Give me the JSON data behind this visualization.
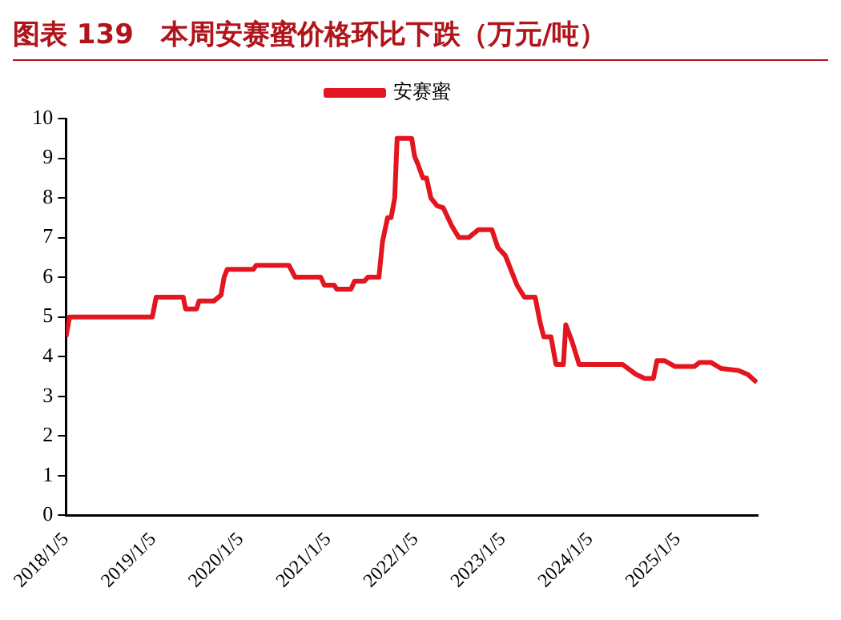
{
  "chart_data": {
    "type": "line",
    "title": "图表 139　本周安赛蜜价格环比下跌（万元/吨）",
    "xlim": [
      "2018-01-05",
      "2025-12-05"
    ],
    "xticks": [
      {
        "value": "2018-01-05",
        "label": "2018/1/5"
      },
      {
        "value": "2019-01-05",
        "label": "2019/1/5"
      },
      {
        "value": "2020-01-05",
        "label": "2020/1/5"
      },
      {
        "value": "2021-01-05",
        "label": "2021/1/5"
      },
      {
        "value": "2022-01-05",
        "label": "2022/1/5"
      },
      {
        "value": "2023-01-05",
        "label": "2023/1/5"
      },
      {
        "value": "2024-01-05",
        "label": "2024/1/5"
      },
      {
        "value": "2025-01-05",
        "label": "2025/1/5"
      }
    ],
    "ylim": [
      0,
      10
    ],
    "yticks": [
      0,
      1,
      2,
      3,
      4,
      5,
      6,
      7,
      8,
      9,
      10
    ],
    "grid": false,
    "legend": "top",
    "marker": "none",
    "line_style": "solid",
    "x": [
      "2018-01-05",
      "2018-01-20",
      "2019-01-01",
      "2019-01-17",
      "2019-05-10",
      "2019-05-20",
      "2019-07-05",
      "2019-07-15",
      "2019-09-15",
      "2019-10-15",
      "2019-10-28",
      "2019-11-10",
      "2020-02-28",
      "2020-03-10",
      "2020-07-25",
      "2020-08-20",
      "2020-12-05",
      "2020-12-20",
      "2021-01-30",
      "2021-02-10",
      "2021-04-10",
      "2021-04-25",
      "2021-06-05",
      "2021-06-20",
      "2021-08-05",
      "2021-08-20",
      "2021-09-10",
      "2021-09-25",
      "2021-10-10",
      "2021-10-20",
      "2021-12-20",
      "2022-01-01",
      "2022-01-15",
      "2022-02-05",
      "2022-02-20",
      "2022-03-10",
      "2022-04-05",
      "2022-05-01",
      "2022-06-05",
      "2022-07-05",
      "2022-08-15",
      "2022-09-25",
      "2022-11-20",
      "2022-12-15",
      "2023-01-15",
      "2023-03-05",
      "2023-04-05",
      "2023-05-20",
      "2023-06-10",
      "2023-06-25",
      "2023-07-25",
      "2023-08-15",
      "2023-09-15",
      "2023-09-25",
      "2023-10-20",
      "2023-11-20",
      "2024-05-20",
      "2024-07-15",
      "2024-08-20",
      "2024-09-25",
      "2024-10-10",
      "2024-11-10",
      "2024-12-25",
      "2025-03-15",
      "2025-04-05",
      "2025-05-25",
      "2025-07-05",
      "2025-09-15",
      "2025-10-25",
      "2025-12-01"
    ],
    "series": [
      {
        "name": "安赛蜜",
        "color": "#e3161f",
        "values": [
          4.5,
          5.0,
          5.0,
          5.5,
          5.5,
          5.2,
          5.2,
          5.4,
          5.4,
          5.55,
          6.0,
          6.2,
          6.2,
          6.3,
          6.3,
          6.0,
          6.0,
          5.8,
          5.8,
          5.7,
          5.7,
          5.9,
          5.9,
          6.0,
          6.0,
          6.9,
          7.5,
          7.5,
          8.0,
          9.5,
          9.5,
          9.05,
          8.85,
          8.5,
          8.5,
          8.0,
          7.8,
          7.75,
          7.3,
          7.0,
          7.0,
          7.2,
          7.2,
          6.75,
          6.55,
          5.8,
          5.5,
          5.5,
          4.85,
          4.5,
          4.5,
          3.8,
          3.8,
          4.8,
          4.4,
          3.8,
          3.8,
          3.55,
          3.45,
          3.45,
          3.9,
          3.9,
          3.75,
          3.75,
          3.85,
          3.85,
          3.7,
          3.65,
          3.55,
          3.35
        ]
      }
    ]
  }
}
